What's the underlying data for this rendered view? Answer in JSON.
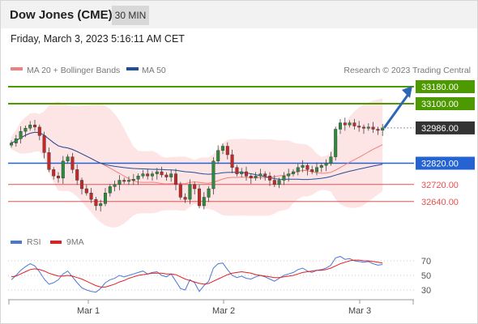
{
  "header": {
    "title": "Dow Jones (CME)",
    "timeframe": "30 MIN"
  },
  "timestamp": "Friday, March 3, 2023 5:16:11 AM CET",
  "colors": {
    "ma20": "#f08080",
    "ma50": "#1f4e9c",
    "bollinger_fill": "#fde2e2",
    "resistance": "#4c9a00",
    "support": "#2463d1",
    "red_level": "#e65050",
    "current": "#333333",
    "arrow": "#2d66b3",
    "rsi": "#4a77d4",
    "rsi_ma": "#e02020"
  },
  "chart_data": [
    {
      "type": "candlestick",
      "legend": [
        "MA 20 + Bollinger Bands",
        "MA 50"
      ],
      "watermark": "Research © 2023 Trading Central",
      "x_ticks": [
        "Mar 1",
        "Mar 2",
        "Mar 3"
      ],
      "y_labels": [
        {
          "value": 33180,
          "label": "33180.00",
          "kind": "resistance"
        },
        {
          "value": 33100,
          "label": "33100.00",
          "kind": "resistance"
        },
        {
          "value": 32986,
          "label": "32986.00",
          "kind": "current"
        },
        {
          "value": 32820,
          "label": "32820.00",
          "kind": "support"
        },
        {
          "value": 32720,
          "label": "32720.00",
          "kind": "level"
        },
        {
          "value": 32640,
          "label": "32640.00",
          "kind": "level"
        }
      ],
      "ylim": [
        32500,
        33250
      ],
      "forecast": {
        "from": 32986,
        "to": 33180
      },
      "closes": [
        32915,
        32935,
        32970,
        32985,
        33000,
        32990,
        32950,
        32870,
        32790,
        32760,
        32750,
        32830,
        32850,
        32790,
        32740,
        32700,
        32680,
        32650,
        32620,
        32630,
        32680,
        32710,
        32720,
        32740,
        32735,
        32740,
        32745,
        32760,
        32770,
        32760,
        32770,
        32780,
        32765,
        32755,
        32770,
        32720,
        32660,
        32650,
        32720,
        32700,
        32620,
        32660,
        32700,
        32830,
        32880,
        32900,
        32860,
        32800,
        32770,
        32780,
        32760,
        32750,
        32760,
        32770,
        32760,
        32740,
        32720,
        32740,
        32760,
        32770,
        32780,
        32800,
        32810,
        32790,
        32780,
        32800,
        32810,
        32820,
        32850,
        32980,
        33010,
        33000,
        33010,
        32995,
        32990,
        32985,
        32990,
        32980,
        32975,
        32986
      ]
    },
    {
      "type": "line",
      "legend": [
        "RSI",
        "9MA"
      ],
      "y_ticks": [
        70,
        50,
        30
      ],
      "rsi": [
        44,
        50,
        57,
        62,
        66,
        63,
        55,
        45,
        38,
        40,
        44,
        52,
        56,
        48,
        40,
        33,
        30,
        28,
        27,
        32,
        40,
        44,
        46,
        50,
        48,
        50,
        52,
        54,
        56,
        52,
        54,
        55,
        50,
        48,
        52,
        42,
        32,
        30,
        44,
        40,
        28,
        36,
        42,
        60,
        66,
        67,
        58,
        50,
        47,
        49,
        46,
        45,
        48,
        50,
        48,
        45,
        42,
        46,
        50,
        52,
        54,
        58,
        60,
        56,
        54,
        57,
        58,
        60,
        64,
        74,
        76,
        72,
        73,
        70,
        69,
        68,
        69,
        66,
        64,
        65
      ],
      "rsi_ma": [
        48,
        49,
        52,
        55,
        58,
        59,
        58,
        56,
        53,
        51,
        49,
        49,
        50,
        49,
        47,
        45,
        42,
        39,
        36,
        34,
        34,
        36,
        38,
        41,
        43,
        46,
        48,
        50,
        51,
        52,
        53,
        53,
        53,
        52,
        52,
        51,
        48,
        45,
        43,
        41,
        39,
        38,
        39,
        42,
        45,
        48,
        51,
        53,
        54,
        55,
        54,
        53,
        51,
        50,
        49,
        48,
        47,
        47,
        48,
        49,
        50,
        52,
        54,
        55,
        56,
        57,
        57,
        58,
        60,
        63,
        66,
        68,
        70,
        71,
        71,
        70,
        70,
        69,
        68,
        67
      ]
    }
  ]
}
